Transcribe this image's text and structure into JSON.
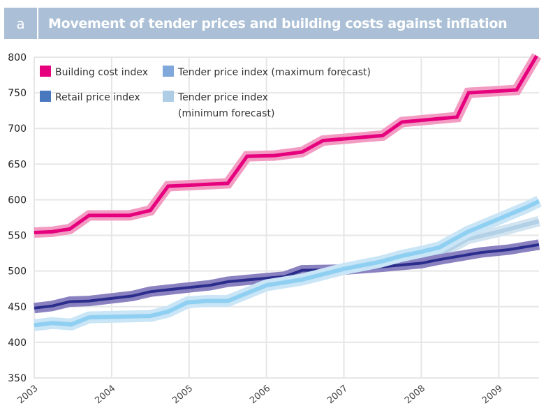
{
  "header": {
    "letter": "a",
    "title": "Movement of tender prices and building costs against inflation"
  },
  "chart_data": {
    "type": "line",
    "title": "Movement of tender prices and building costs against inflation",
    "xlabel": "",
    "ylabel": "",
    "xlim": [
      2003,
      2009.52
    ],
    "ylim": [
      350,
      800
    ],
    "grid": true,
    "legend_position": "top-left",
    "x_ticks": [
      "2003",
      "2004",
      "2005",
      "2006",
      "2007",
      "2008",
      "2009"
    ],
    "y_ticks": [
      800,
      750,
      700,
      650,
      600,
      550,
      500,
      450,
      400,
      350
    ],
    "series": [
      {
        "name": "Tender price index (minimum forecast)",
        "legend_label_lines": [
          "Tender price index",
          "(minimum forecast)"
        ],
        "color": "#aecde4",
        "x": [
          2007.6,
          2007.75,
          2008.0,
          2008.25,
          2008.6,
          2009.0,
          2009.52
        ],
        "y": [
          515,
          517,
          520,
          524,
          545,
          555,
          570
        ]
      },
      {
        "name": "Retail price index",
        "legend_label_lines": [
          "Retail price index"
        ],
        "color": "#4a78be",
        "x": [
          2003.0,
          2003.23,
          2003.46,
          2003.71,
          2004.27,
          2004.5,
          2005.0,
          2005.27,
          2005.5,
          2006.0,
          2006.23,
          2006.46,
          2007.0,
          2007.5,
          2008.0,
          2008.23,
          2008.77,
          2009.13,
          2009.52
        ],
        "y": [
          448,
          451,
          457,
          458,
          465,
          471,
          477,
          480,
          485,
          490,
          492,
          501,
          502,
          506,
          511,
          516,
          526,
          530,
          537
        ]
      },
      {
        "name": "Tender price index (maximum forecast)",
        "legend_label_lines": [
          "Tender price index (maximum forecast)"
        ],
        "color": "#80a8da",
        "x": [
          2003.0,
          2003.23,
          2003.48,
          2003.71,
          2004.5,
          2004.73,
          2004.98,
          2005.23,
          2005.5,
          2005.75,
          2006.0,
          2006.46,
          2007.0,
          2007.47,
          2007.74,
          2008.0,
          2008.23,
          2008.6,
          2009.0,
          2009.37,
          2009.52
        ],
        "y": [
          424,
          427,
          425,
          435,
          437,
          443,
          456,
          458,
          458,
          469,
          480,
          488,
          503,
          513,
          521,
          527,
          533,
          555,
          573,
          590,
          598
        ]
      },
      {
        "name": "Building cost index",
        "legend_label_lines": [
          "Building cost index"
        ],
        "color": "#e6007e",
        "x": [
          2003.0,
          2003.23,
          2003.46,
          2003.71,
          2004.23,
          2004.5,
          2004.73,
          2005.5,
          2005.75,
          2006.1,
          2006.46,
          2006.73,
          2007.5,
          2007.75,
          2008.46,
          2008.61,
          2009.23,
          2009.49
        ],
        "y": [
          554,
          555,
          559,
          578,
          578,
          585,
          619,
          623,
          661,
          662,
          667,
          683,
          690,
          709,
          716,
          750,
          754,
          802
        ]
      }
    ]
  }
}
